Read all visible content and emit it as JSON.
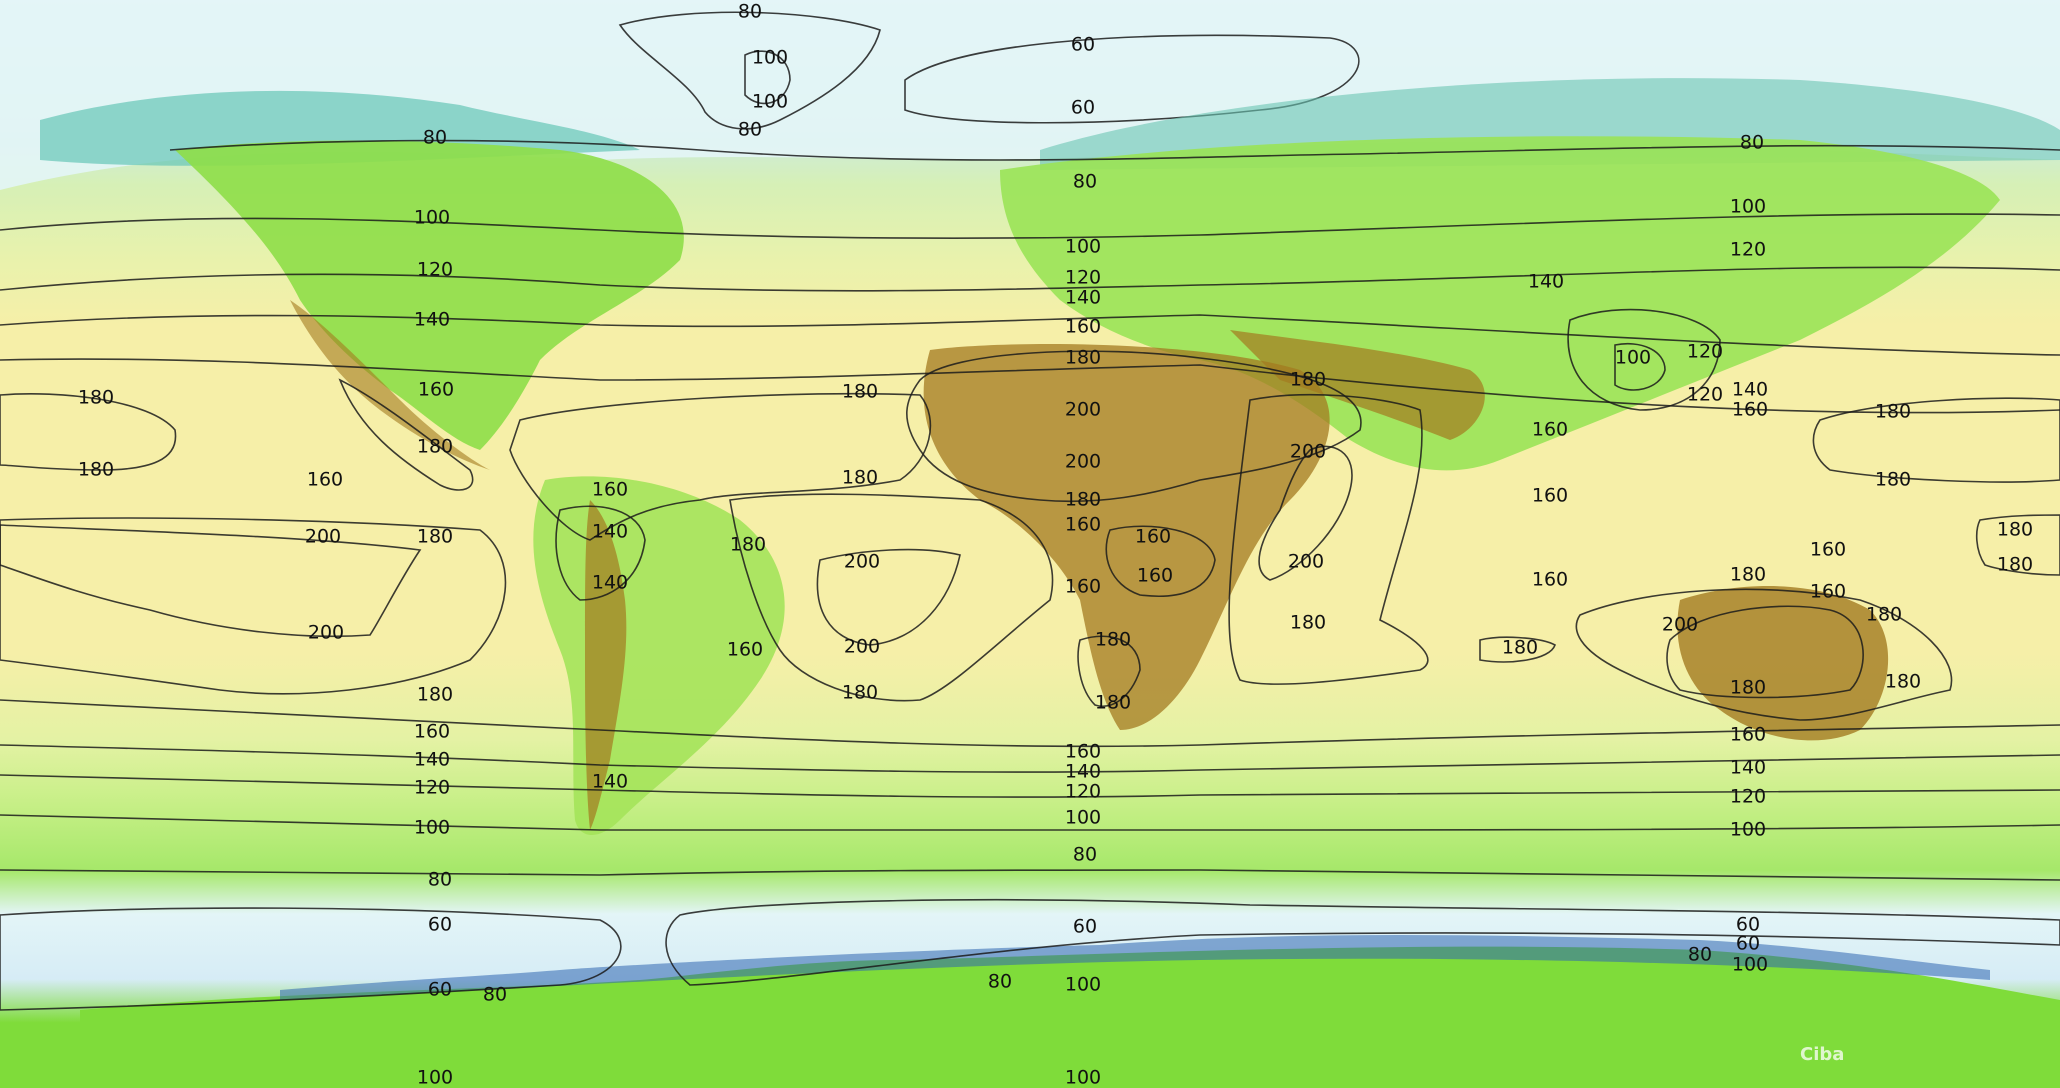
{
  "map": {
    "credit": "Ciba",
    "colors": {
      "v60": "#d6ecf6",
      "v80": "#7fdc3a",
      "v100": "#a6e86a",
      "v120": "#c6ef86",
      "v140": "#e4f2a4",
      "v160": "#f6efa8",
      "v180": "#f6b8a2",
      "v200": "#ec6f8e",
      "v220": "#b01818",
      "terrain": "#a37a20",
      "polar": "#e3f5f7"
    },
    "isotherm_labels": [
      {
        "id": "greenland-80-top",
        "text": "80"
      },
      {
        "id": "greenland-100-a",
        "text": "100"
      },
      {
        "id": "greenland-100-b",
        "text": "100"
      },
      {
        "id": "greenland-80-bottom",
        "text": "80"
      },
      {
        "id": "arctic-60-a",
        "text": "60"
      },
      {
        "id": "arctic-60-b",
        "text": "60"
      },
      {
        "id": "namer-80",
        "text": "80"
      },
      {
        "id": "namer-100",
        "text": "100"
      },
      {
        "id": "namer-120",
        "text": "120"
      },
      {
        "id": "namer-140",
        "text": "140"
      },
      {
        "id": "namer-160",
        "text": "160"
      },
      {
        "id": "namer-180",
        "text": "180"
      },
      {
        "id": "pac-180-top",
        "text": "180"
      },
      {
        "id": "pac-180-bottom",
        "text": "180"
      },
      {
        "id": "pac-160",
        "text": "160"
      },
      {
        "id": "pac-200-top",
        "text": "200"
      },
      {
        "id": "pac-180-mid",
        "text": "180"
      },
      {
        "id": "pac-200-bottom",
        "text": "200"
      },
      {
        "id": "pac-180-low",
        "text": "180"
      },
      {
        "id": "pac-160-low",
        "text": "160"
      },
      {
        "id": "pac-140-low",
        "text": "140"
      },
      {
        "id": "pac-120-low",
        "text": "120"
      },
      {
        "id": "pac-100-low",
        "text": "100"
      },
      {
        "id": "pac-80-low",
        "text": "80"
      },
      {
        "id": "pac-60-low",
        "text": "60"
      },
      {
        "id": "ant-60-left",
        "text": "60"
      },
      {
        "id": "ant-80-left",
        "text": "80"
      },
      {
        "id": "ant-100-left",
        "text": "100"
      },
      {
        "id": "samer-160",
        "text": "160"
      },
      {
        "id": "samer-140-a",
        "text": "140"
      },
      {
        "id": "samer-140-b",
        "text": "140"
      },
      {
        "id": "samer-180",
        "text": "180"
      },
      {
        "id": "samer-160-b",
        "text": "160"
      },
      {
        "id": "samer-140-c",
        "text": "140"
      },
      {
        "id": "atl-180",
        "text": "180"
      },
      {
        "id": "atl-180-b",
        "text": "180"
      },
      {
        "id": "atl-200",
        "text": "200"
      },
      {
        "id": "atl-200-b",
        "text": "200"
      },
      {
        "id": "atl-180-c",
        "text": "180"
      },
      {
        "id": "eur-80",
        "text": "80"
      },
      {
        "id": "eur-100",
        "text": "100"
      },
      {
        "id": "eur-120",
        "text": "120"
      },
      {
        "id": "eur-140",
        "text": "140"
      },
      {
        "id": "eur-160",
        "text": "160"
      },
      {
        "id": "sahara-180",
        "text": "180"
      },
      {
        "id": "sahara-200-a",
        "text": "200"
      },
      {
        "id": "sahara-200-b",
        "text": "200"
      },
      {
        "id": "sahara-180-b",
        "text": "180"
      },
      {
        "id": "afr-160-a",
        "text": "160"
      },
      {
        "id": "afr-160-b",
        "text": "160"
      },
      {
        "id": "afr-160-c",
        "text": "160"
      },
      {
        "id": "afr-160-d",
        "text": "160"
      },
      {
        "id": "afr-180-a",
        "text": "180"
      },
      {
        "id": "afr-180-b",
        "text": "180"
      },
      {
        "id": "arabia-180",
        "text": "180"
      },
      {
        "id": "arabia-200",
        "text": "200"
      },
      {
        "id": "ind-200",
        "text": "200"
      },
      {
        "id": "ind-180",
        "text": "180"
      },
      {
        "id": "ind-180-b",
        "text": "180"
      },
      {
        "id": "mid-160",
        "text": "160"
      },
      {
        "id": "mid-140",
        "text": "140"
      },
      {
        "id": "mid-120",
        "text": "120"
      },
      {
        "id": "mid-100",
        "text": "100"
      },
      {
        "id": "mid-80",
        "text": "80"
      },
      {
        "id": "mid-60",
        "text": "60"
      },
      {
        "id": "mid-80-b",
        "text": "80"
      },
      {
        "id": "mid-100-b",
        "text": "100"
      },
      {
        "id": "asia-80",
        "text": "80"
      },
      {
        "id": "asia-100",
        "text": "100"
      },
      {
        "id": "asia-120",
        "text": "120"
      },
      {
        "id": "asia-140",
        "text": "140"
      },
      {
        "id": "china-100",
        "text": "100"
      },
      {
        "id": "china-120-a",
        "text": "120"
      },
      {
        "id": "china-120-b",
        "text": "120"
      },
      {
        "id": "asia-140-b",
        "text": "140"
      },
      {
        "id": "asia-160",
        "text": "160"
      },
      {
        "id": "asia-160-b",
        "text": "160"
      },
      {
        "id": "sea-160",
        "text": "160"
      },
      {
        "id": "sea-160-b",
        "text": "160"
      },
      {
        "id": "sea-180",
        "text": "180"
      },
      {
        "id": "wpac-180-a",
        "text": "180"
      },
      {
        "id": "wpac-180-b",
        "text": "180"
      },
      {
        "id": "wpac-180-c",
        "text": "180"
      },
      {
        "id": "wpac-180-d",
        "text": "180"
      },
      {
        "id": "aus-200",
        "text": "200"
      },
      {
        "id": "aus-160-a",
        "text": "160"
      },
      {
        "id": "aus-160-b",
        "text": "160"
      },
      {
        "id": "aus-180-a",
        "text": "180"
      },
      {
        "id": "aus-180-b",
        "text": "180"
      },
      {
        "id": "aus-180-c",
        "text": "180"
      },
      {
        "id": "aus-160-c",
        "text": "160"
      },
      {
        "id": "aus-140",
        "text": "140"
      },
      {
        "id": "aus-120",
        "text": "120"
      },
      {
        "id": "aus-100",
        "text": "100"
      },
      {
        "id": "aus-60",
        "text": "60"
      },
      {
        "id": "aus-60-b",
        "text": "60"
      },
      {
        "id": "aus-80",
        "text": "80"
      },
      {
        "id": "aus-100-b",
        "text": "100"
      },
      {
        "id": "bottom-100",
        "text": "100"
      }
    ]
  }
}
